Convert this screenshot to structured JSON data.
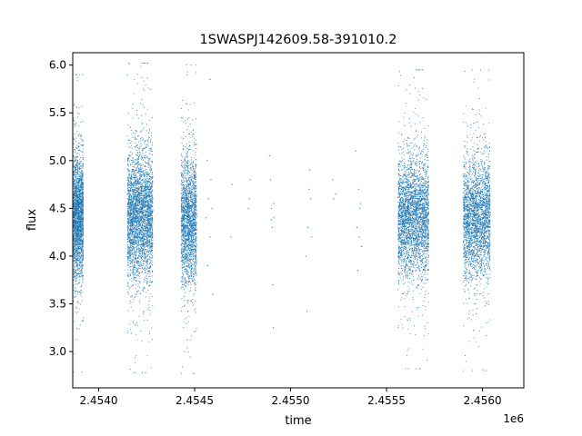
{
  "chart_data": {
    "type": "scatter",
    "title": "1SWASPJ142609.58-391010.2",
    "xlabel": "time",
    "ylabel": "flux",
    "x_offset_label": "1e6",
    "xlim": [
      2453865,
      2456215
    ],
    "ylim": [
      2.62,
      6.13
    ],
    "x_ticks": [
      2453999.5,
      2454249.5,
      2454499.5,
      2454749.5,
      2454999.5,
      2455249.5,
      2455499.5,
      2455749.5,
      2455999.5
    ],
    "x_tick_labels": [
      "2.4540",
      "2.4545",
      "2.4550",
      "2.4555",
      "2.4560"
    ],
    "x_tick_labeled_values": [
      2454000,
      2454500,
      2455000,
      2455500,
      2456000
    ],
    "y_ticks": [
      3.0,
      3.5,
      4.0,
      4.5,
      5.0,
      5.5,
      6.0
    ],
    "y_tick_labels": [
      "3.0",
      "3.5",
      "4.0",
      "4.5",
      "5.0",
      "5.5",
      "6.0"
    ],
    "grid": false,
    "color": "#1f77b4",
    "clusters": [
      {
        "x_start": 2453868,
        "x_end": 2453920,
        "center": 4.42,
        "spread": 0.3,
        "y_min": 2.78,
        "y_max": 5.9,
        "n": 2200
      },
      {
        "x_start": 2454150,
        "x_end": 2454282,
        "center": 4.42,
        "spread": 0.32,
        "y_min": 2.78,
        "y_max": 6.02,
        "n": 3200
      },
      {
        "x_start": 2454430,
        "x_end": 2454510,
        "center": 4.38,
        "spread": 0.32,
        "y_min": 2.77,
        "y_max": 6.0,
        "n": 2000
      },
      {
        "x_start": 2455560,
        "x_end": 2455720,
        "center": 4.4,
        "spread": 0.3,
        "y_min": 2.82,
        "y_max": 5.95,
        "n": 3000
      },
      {
        "x_start": 2455900,
        "x_end": 2456040,
        "center": 4.4,
        "spread": 0.3,
        "y_min": 2.8,
        "y_max": 5.95,
        "n": 2600
      }
    ],
    "sparse_points": [
      [
        2454560,
        4.4
      ],
      [
        2454565,
        5.0
      ],
      [
        2454568,
        3.9
      ],
      [
        2454572,
        4.6
      ],
      [
        2454580,
        5.85
      ],
      [
        2454580,
        4.2
      ],
      [
        2454585,
        4.8
      ],
      [
        2454590,
        4.5
      ],
      [
        2454595,
        3.6
      ],
      [
        2454690,
        4.2
      ],
      [
        2454695,
        4.75
      ],
      [
        2454780,
        4.5
      ],
      [
        2454785,
        4.6
      ],
      [
        2454790,
        4.8
      ],
      [
        2454890,
        5.05
      ],
      [
        2454895,
        4.8
      ],
      [
        2454900,
        4.5
      ],
      [
        2454900,
        4.38
      ],
      [
        2454905,
        4.3
      ],
      [
        2454908,
        3.7
      ],
      [
        2454910,
        3.25
      ],
      [
        2454912,
        4.4
      ],
      [
        2454912,
        4.55
      ],
      [
        2455080,
        4.0
      ],
      [
        2455085,
        3.42
      ],
      [
        2455090,
        4.3
      ],
      [
        2455095,
        4.7
      ],
      [
        2455100,
        4.9
      ],
      [
        2455105,
        4.6
      ],
      [
        2455110,
        4.2
      ],
      [
        2455220,
        4.8
      ],
      [
        2455225,
        4.6
      ],
      [
        2455235,
        4.65
      ],
      [
        2455340,
        5.1
      ],
      [
        2455345,
        4.3
      ],
      [
        2455350,
        3.85
      ],
      [
        2455355,
        4.7
      ],
      [
        2455358,
        4.2
      ],
      [
        2455362,
        4.5
      ],
      [
        2455366,
        4.55
      ],
      [
        2455370,
        4.1
      ]
    ]
  }
}
